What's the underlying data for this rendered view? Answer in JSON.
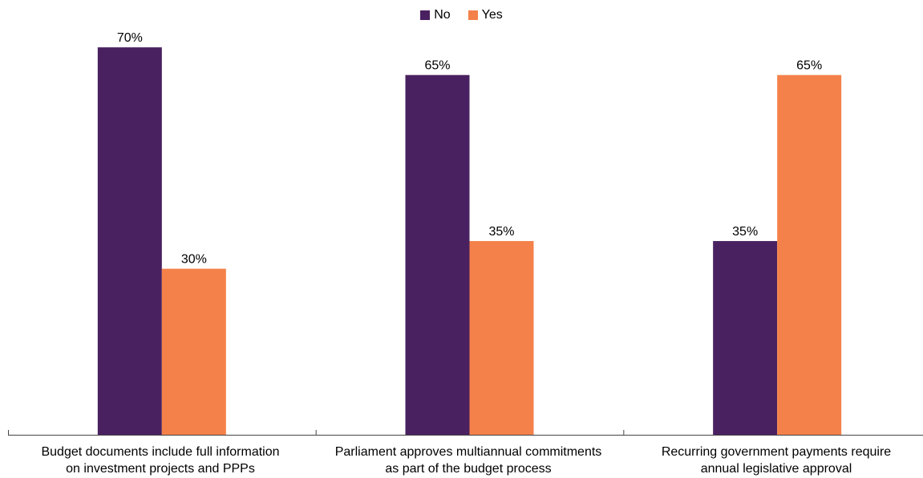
{
  "chart_data": {
    "type": "bar",
    "categories": [
      [
        "Budget documents include full information",
        "on investment projects and PPPs"
      ],
      [
        "Parliament approves multiannual commitments",
        "as part of the budget process"
      ],
      [
        "Recurring government payments require",
        "annual legislative approval"
      ]
    ],
    "series": [
      {
        "name": "No",
        "values": [
          70,
          65,
          35
        ],
        "labels": [
          "70%",
          "65%",
          "35%"
        ],
        "color": "#4a2160"
      },
      {
        "name": "Yes",
        "values": [
          30,
          35,
          65
        ],
        "labels": [
          "30%",
          "35%",
          "65%"
        ],
        "color": "#f4814a"
      }
    ],
    "ylim": [
      0,
      80
    ],
    "legend_position": "top-center",
    "grid": false
  }
}
